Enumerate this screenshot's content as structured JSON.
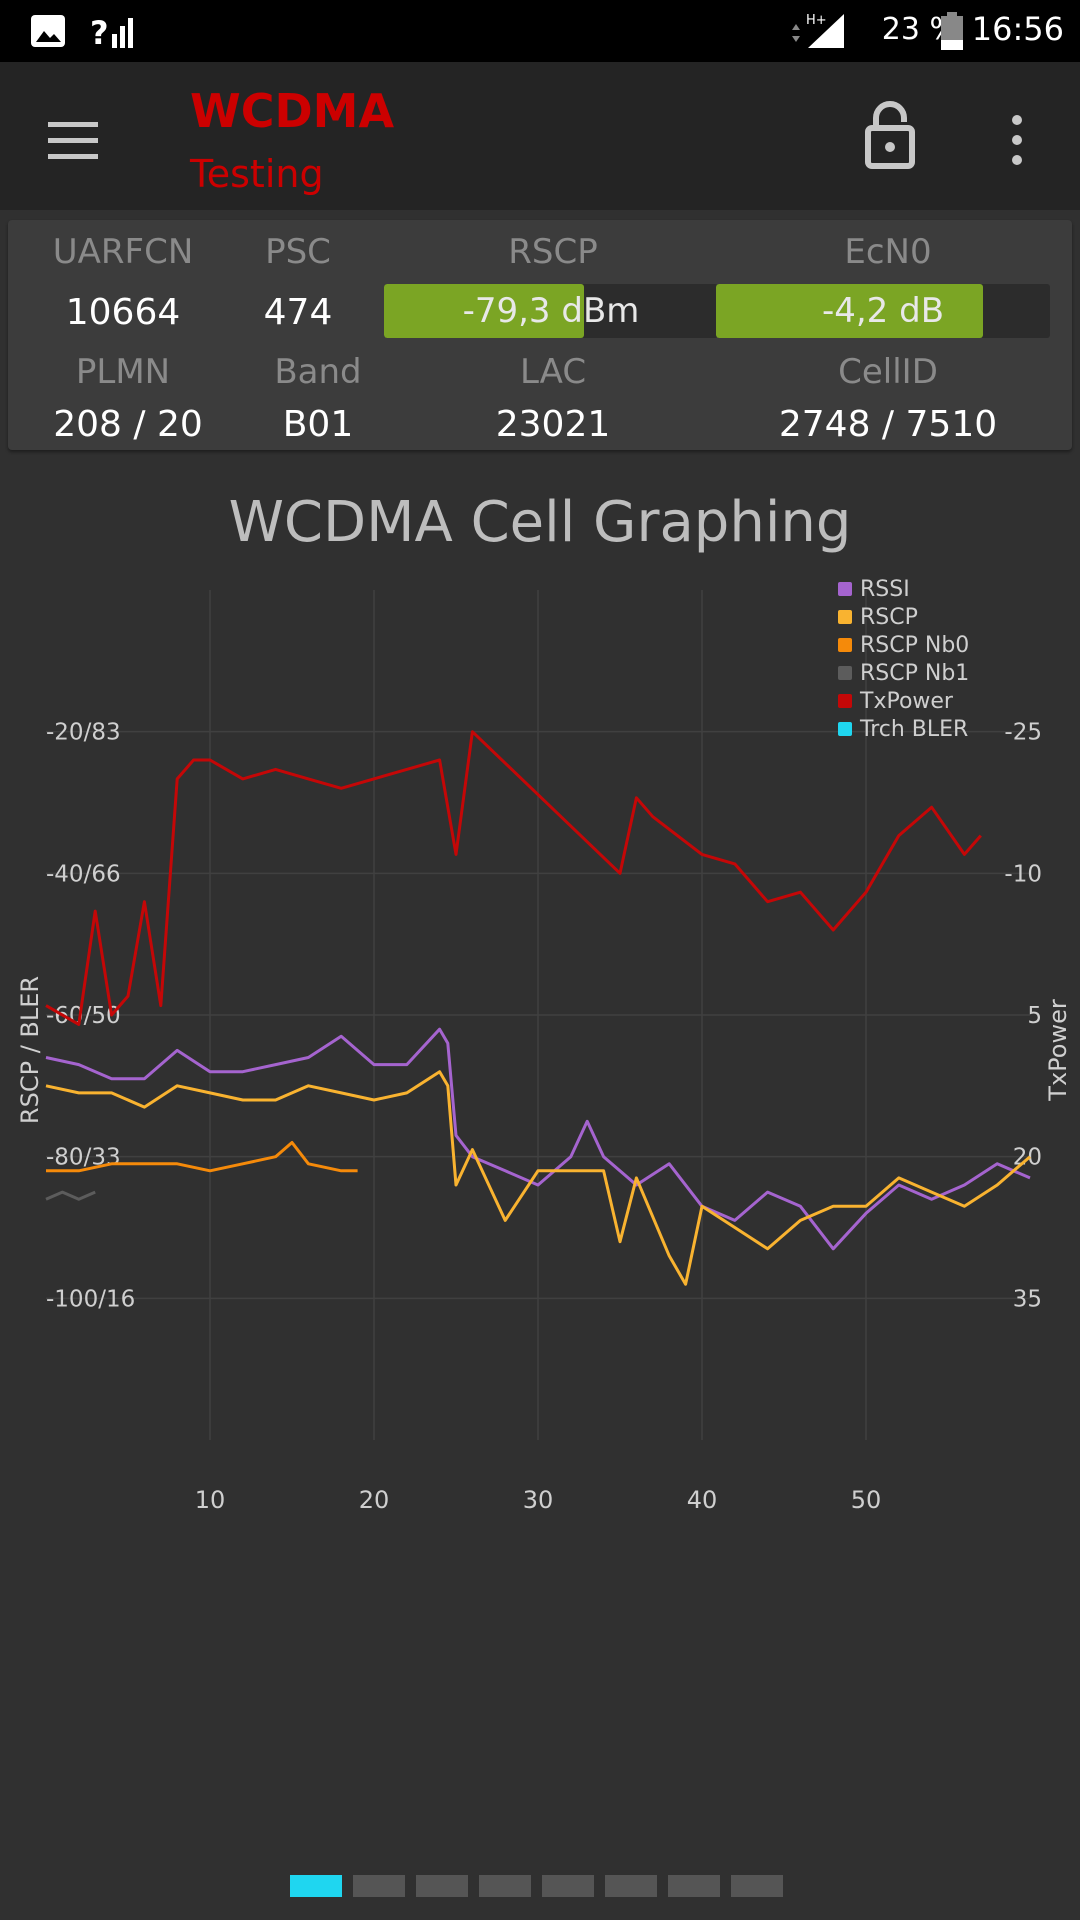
{
  "status_bar": {
    "battery": "23 %",
    "time": "16:56",
    "network_type": "H+",
    "signal_unknown": "?"
  },
  "app_bar": {
    "title": "WCDMA",
    "subtitle": "Testing",
    "icons": [
      "menu-icon",
      "lock-open-icon",
      "more-vert-icon"
    ]
  },
  "cell_info": {
    "uarfcn_label": "UARFCN",
    "uarfcn": "10664",
    "psc_label": "PSC",
    "psc": "474",
    "rscp_label": "RSCP",
    "rscp": "-79,3 dBm",
    "rscp_level": 0.6,
    "ecn0_label": "EcN0",
    "ecn0": "-4,2 dB",
    "ecn0_level": 0.8,
    "plmn_label": "PLMN",
    "plmn": "208 / 20",
    "band_label": "Band",
    "band": "B01",
    "lac_label": "LAC",
    "lac": "23021",
    "cellid_label": "CellID",
    "cellid": "2748 / 7510",
    "bar_color": "#7ba524"
  },
  "chart_title": "WCDMA Cell Graphing",
  "chart_data": {
    "type": "line",
    "title": "WCDMA Cell Graphing",
    "ylabel_left": "RSCP / BLER",
    "ylabel_right": "TxPower",
    "x_ticks": [
      10,
      20,
      30,
      40,
      50
    ],
    "xlim": [
      0,
      60
    ],
    "y_left_ticks": [
      "-20/83",
      "-40/66",
      "-60/50",
      "-80/33",
      "-100/16"
    ],
    "y_left_values": [
      -20,
      -40,
      -60,
      -80,
      -100
    ],
    "ylim_left": [
      -120,
      0
    ],
    "y_right_ticks": [
      "-25",
      "-10",
      "5",
      "20",
      "35"
    ],
    "y_right_values": [
      -25,
      -10,
      5,
      20,
      35
    ],
    "ylim_right": [
      -40,
      50
    ],
    "legend_position": "top-right",
    "series": [
      {
        "name": "RSSI",
        "color": "#a564cf",
        "axis": "left",
        "x": [
          0,
          2,
          4,
          6,
          8,
          10,
          12,
          14,
          16,
          18,
          20,
          22,
          24,
          24.5,
          25,
          26,
          28,
          30,
          32,
          33,
          34,
          36,
          38,
          40,
          42,
          44,
          46,
          48,
          50,
          52,
          54,
          56,
          58,
          60
        ],
        "y": [
          -66,
          -67,
          -69,
          -69,
          -65,
          -68,
          -68,
          -67,
          -66,
          -63,
          -67,
          -67,
          -62,
          -64,
          -77,
          -80,
          -82,
          -84,
          -80,
          -75,
          -80,
          -84,
          -81,
          -87,
          -89,
          -85,
          -87,
          -93,
          -88,
          -84,
          -86,
          -84,
          -81,
          -83
        ]
      },
      {
        "name": "RSCP",
        "color": "#f9b330",
        "axis": "left",
        "x": [
          0,
          2,
          4,
          6,
          8,
          10,
          12,
          14,
          16,
          18,
          20,
          22,
          24,
          24.5,
          25,
          26,
          28,
          30,
          32,
          34,
          35,
          36,
          38,
          39,
          40,
          42,
          44,
          46,
          48,
          50,
          52,
          54,
          56,
          58,
          60
        ],
        "y": [
          -70,
          -71,
          -71,
          -73,
          -70,
          -71,
          -72,
          -72,
          -70,
          -71,
          -72,
          -71,
          -68,
          -70,
          -84,
          -79,
          -89,
          -82,
          -82,
          -82,
          -92,
          -83,
          -94,
          -98,
          -87,
          -90,
          -93,
          -89,
          -87,
          -87,
          -83,
          -85,
          -87,
          -84,
          -80
        ]
      },
      {
        "name": "RSCP Nb0",
        "color": "#f58a0a",
        "axis": "left",
        "x": [
          0,
          2,
          4,
          6,
          8,
          10,
          12,
          14,
          15,
          16,
          18,
          19
        ],
        "y": [
          -82,
          -82,
          -81,
          -81,
          -81,
          -82,
          -81,
          -80,
          -78,
          -81,
          -82,
          -82
        ]
      },
      {
        "name": "RSCP Nb1",
        "color": "#5c5c5c",
        "axis": "left",
        "x": [
          0,
          1,
          2,
          3
        ],
        "y": [
          -86,
          -85,
          -86,
          -85
        ]
      },
      {
        "name": "TxPower",
        "color": "#c40707",
        "axis": "right",
        "x": [
          0,
          2,
          3,
          4,
          5,
          6,
          7,
          8,
          9,
          10,
          12,
          14,
          16,
          18,
          24,
          25,
          26,
          35,
          36,
          37,
          40,
          42,
          44,
          46,
          48,
          50,
          52,
          54,
          56,
          57
        ],
        "y": [
          4,
          6,
          -6,
          5,
          3,
          -7,
          4,
          -20,
          -22,
          -22,
          -20,
          -21,
          -20,
          -19,
          -22,
          -12,
          -25,
          -10,
          -18,
          -16,
          -12,
          -11,
          -7,
          -8,
          -4,
          -8,
          -14,
          -17,
          -12,
          -14
        ]
      },
      {
        "name": "Trch BLER",
        "color": "#1fd6f0",
        "axis": "left",
        "x": [],
        "y": []
      }
    ]
  },
  "pager": {
    "count": 8,
    "active": 0
  }
}
